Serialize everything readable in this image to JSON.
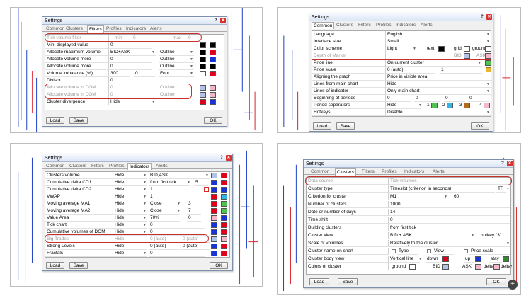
{
  "windows": {
    "w1": {
      "title": "Settings",
      "tabs": [
        {
          "label": "Common",
          "active": false
        },
        {
          "label": "Clusters",
          "active": false
        },
        {
          "label": "Filters",
          "active": true
        },
        {
          "label": "Profiles",
          "active": false
        },
        {
          "label": "Indicators",
          "active": false
        },
        {
          "label": "Alerts",
          "active": false
        }
      ],
      "rows": [
        {
          "label": "Tick volume filter",
          "dis": true,
          "a": "min",
          "b": "0",
          "c": "max",
          "d": "0"
        },
        {
          "label": "Min. displayed value",
          "a": "0"
        },
        {
          "label": "Allocate maximum volume",
          "a": "BID+ASK",
          "c": "Outline"
        },
        {
          "label": "Allocate volume more",
          "a": "0",
          "c": "Outline"
        },
        {
          "label": "Allocate volume more",
          "a": "0",
          "c": "Outline"
        },
        {
          "label": "Volume imbalance (%)",
          "a": "300",
          "b": "0",
          "c": "Font"
        },
        {
          "label": "Divisor",
          "a": "0"
        },
        {
          "label": "Allocate volume in DOM",
          "dis": true,
          "a": "0",
          "c": "Outline"
        },
        {
          "label": "Allocate volume in DOM",
          "dis": true,
          "a": "0",
          "c": "Outline"
        },
        {
          "label": "Cluster divergence",
          "a": "Hide"
        }
      ],
      "load": "Load",
      "save": "Save",
      "ok": "OK"
    },
    "w2": {
      "title": "Settings",
      "tabs": [
        {
          "label": "Common",
          "active": true
        },
        {
          "label": "Clusters",
          "active": false
        },
        {
          "label": "Filters",
          "active": false
        },
        {
          "label": "Profiles",
          "active": false
        },
        {
          "label": "Indicators",
          "active": false
        },
        {
          "label": "Alerts",
          "active": false
        }
      ],
      "rows": [
        {
          "label": "Language",
          "a": "English"
        },
        {
          "label": "Interface size",
          "a": "Small"
        },
        {
          "label": "Color scheme",
          "a": "Light",
          "b": "text",
          "c": "grid",
          "d": "ground"
        },
        {
          "label": "Depth of Market",
          "dis": true,
          "b": "BID",
          "d": "ASK"
        },
        {
          "label": "Price line",
          "a": "On current cluster"
        },
        {
          "label": "Price scale",
          "a": "0 (auto)",
          "c": "1"
        },
        {
          "label": "Aligning the graph",
          "a": "Price in visible area"
        },
        {
          "label": "Lines from main chart",
          "a": "Hide"
        },
        {
          "label": "Lines of indicator",
          "a": "Only main chart"
        },
        {
          "label": "Beginning of periods",
          "a": "0",
          "b": "0",
          "c": "0",
          "d": "0"
        },
        {
          "label": "Period separators",
          "a": "Hide",
          "p1": "1",
          "p2": "2",
          "p3": "3",
          "p4": "4"
        },
        {
          "label": "Hotkeys",
          "a": "Disable"
        }
      ],
      "load": "Load",
      "save": "Save",
      "ok": "OK"
    },
    "w3": {
      "title": "Settings",
      "tabs": [
        {
          "label": "Common",
          "active": false
        },
        {
          "label": "Clusters",
          "active": false
        },
        {
          "label": "Filters",
          "active": false
        },
        {
          "label": "Profiles",
          "active": false
        },
        {
          "label": "Indicators",
          "active": true
        },
        {
          "label": "Alerts",
          "active": false
        }
      ],
      "rows": [
        {
          "label": "Clusters volume",
          "a": "Hide",
          "b": "BID,ASK"
        },
        {
          "label": "Cumulative delta CD1",
          "a": "Hide",
          "b": "from first tick",
          "c": "5"
        },
        {
          "label": "Cumulative delta CD2",
          "a": "Hide",
          "b": "1"
        },
        {
          "label": "VWAP",
          "a": "Hide",
          "b": "1"
        },
        {
          "label": "Moving average MA1",
          "a": "Hide",
          "b": "Close",
          "c": "3"
        },
        {
          "label": "Moving average MA2",
          "a": "Hide",
          "b": "Close",
          "c": "7"
        },
        {
          "label": "Value Area",
          "a": "Hide",
          "b": "70%",
          "c": "0"
        },
        {
          "label": "Tick chart",
          "a": "Hide",
          "b": "0"
        },
        {
          "label": "Cumulative volumes of DOM",
          "a": "Hide",
          "b": "0"
        },
        {
          "label": "Big Trades",
          "dis": true,
          "a": "Hide",
          "b": "0 (auto)",
          "c": "0 (auto)"
        },
        {
          "label": "Strong Levels",
          "a": "Hide",
          "b": "0 (auto)",
          "c": "0 (auto)"
        },
        {
          "label": "Fractals",
          "a": "Hide",
          "b": "0"
        }
      ],
      "load": "Load",
      "save": "Save",
      "ok": "OK"
    },
    "w4": {
      "title": "Settings",
      "tabs": [
        {
          "label": "Common",
          "active": false
        },
        {
          "label": "Clusters",
          "active": true
        },
        {
          "label": "Filters",
          "active": false
        },
        {
          "label": "Profiles",
          "active": false
        },
        {
          "label": "Indicators",
          "active": false
        },
        {
          "label": "Alerts",
          "active": false
        }
      ],
      "rows": [
        {
          "label": "Data source",
          "dis": true,
          "a": "Tick volumes"
        },
        {
          "label": "Cluster type",
          "a": "Timeslot (criterion in seconds)",
          "b": "TF"
        },
        {
          "label": "Criterion for cluster",
          "a": "M1",
          "b": "60"
        },
        {
          "label": "Number of clusters",
          "a": "1000"
        },
        {
          "label": "Date or number of days",
          "a": "14"
        },
        {
          "label": "Time shift",
          "a": "0"
        },
        {
          "label": "Building clusters",
          "a": "from first tick"
        },
        {
          "label": "Cluster view",
          "a": "BID + ASK",
          "b": "hotkey \"3\""
        },
        {
          "label": "Scale of volumes",
          "a": "Relatively to the cluster"
        },
        {
          "label": "Cluster name on chart",
          "a": "Type",
          "b": "View",
          "c": "Price scale"
        },
        {
          "label": "Cluster body view",
          "a": "Vertical line",
          "b": "down",
          "c": "up",
          "d": "stay"
        },
        {
          "label": "Colors of cluster",
          "a": "ground",
          "b": "BID",
          "c": "ASK",
          "d": "delta-",
          "e": "delta+"
        }
      ],
      "load": "Load",
      "save": "Save",
      "ok": "OK"
    }
  },
  "colors": {
    "highlight": "#c9302c",
    "bull": "#d9232a",
    "bear": "#1f3fc4"
  },
  "icons": [
    "close-icon",
    "help-icon",
    "dropdown-arrow-icon",
    "calendar-icon",
    "folder-icon",
    "zoom-in-icon"
  ]
}
